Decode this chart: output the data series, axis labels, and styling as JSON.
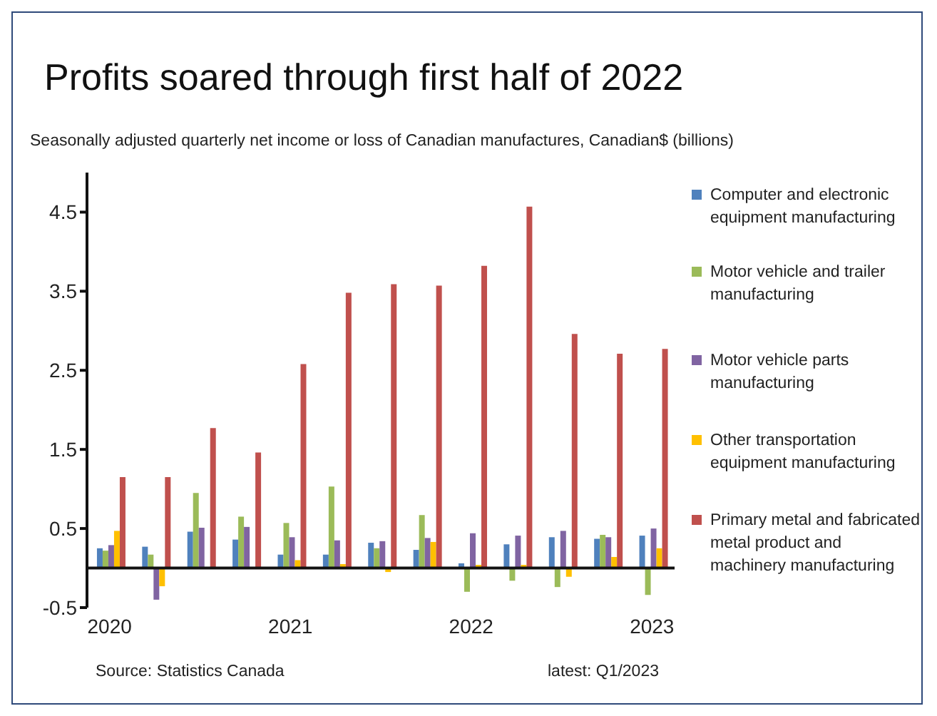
{
  "chart_data": {
    "type": "bar",
    "title": "Profits soared through first half of 2022",
    "subtitle": "Seasonally adjusted quarterly net income or loss of Canadian manufactures, Canadian$ (billions)",
    "categories": [
      "2020",
      null,
      null,
      null,
      "2021",
      null,
      null,
      null,
      "2022",
      null,
      null,
      null,
      "2023"
    ],
    "series": [
      {
        "name": "Computer and electronic equipment manufacturing",
        "color": "#4f81bd",
        "values": [
          0.25,
          0.27,
          0.46,
          0.36,
          0.17,
          0.17,
          0.32,
          0.23,
          0.06,
          0.3,
          0.39,
          0.37,
          0.41
        ]
      },
      {
        "name": "Motor vehicle and trailer manufacturing",
        "color": "#9bbb59",
        "values": [
          0.22,
          0.17,
          0.95,
          0.65,
          0.57,
          1.03,
          0.25,
          0.67,
          -0.3,
          -0.16,
          -0.24,
          0.42,
          -0.34
        ]
      },
      {
        "name": "Motor vehicle parts manufacturing",
        "color": "#8064a2",
        "values": [
          0.29,
          -0.4,
          0.51,
          0.52,
          0.39,
          0.35,
          0.34,
          0.38,
          0.44,
          0.41,
          0.47,
          0.39,
          0.5
        ]
      },
      {
        "name": "Other transportation equipment manufacturing",
        "color": "#ffc000",
        "values": [
          0.47,
          -0.23,
          0,
          0,
          0.1,
          0.05,
          -0.05,
          0.33,
          0.04,
          0.04,
          -0.11,
          0.14,
          0.25
        ]
      },
      {
        "name": "Primary metal and fabricated metal product and machinery manufacturing",
        "color": "#c0504d",
        "values": [
          1.15,
          1.15,
          1.77,
          1.46,
          2.58,
          3.48,
          3.59,
          3.57,
          3.82,
          4.57,
          2.96,
          2.71,
          2.77
        ]
      }
    ],
    "ylim": [
      -0.5,
      5.0
    ],
    "yticks": [
      -0.5,
      0.5,
      1.5,
      2.5,
      3.5,
      4.5
    ],
    "grid": false,
    "legend": "right",
    "annotations": [
      "Source: Statistics Canada",
      "latest: Q1/2023"
    ]
  }
}
